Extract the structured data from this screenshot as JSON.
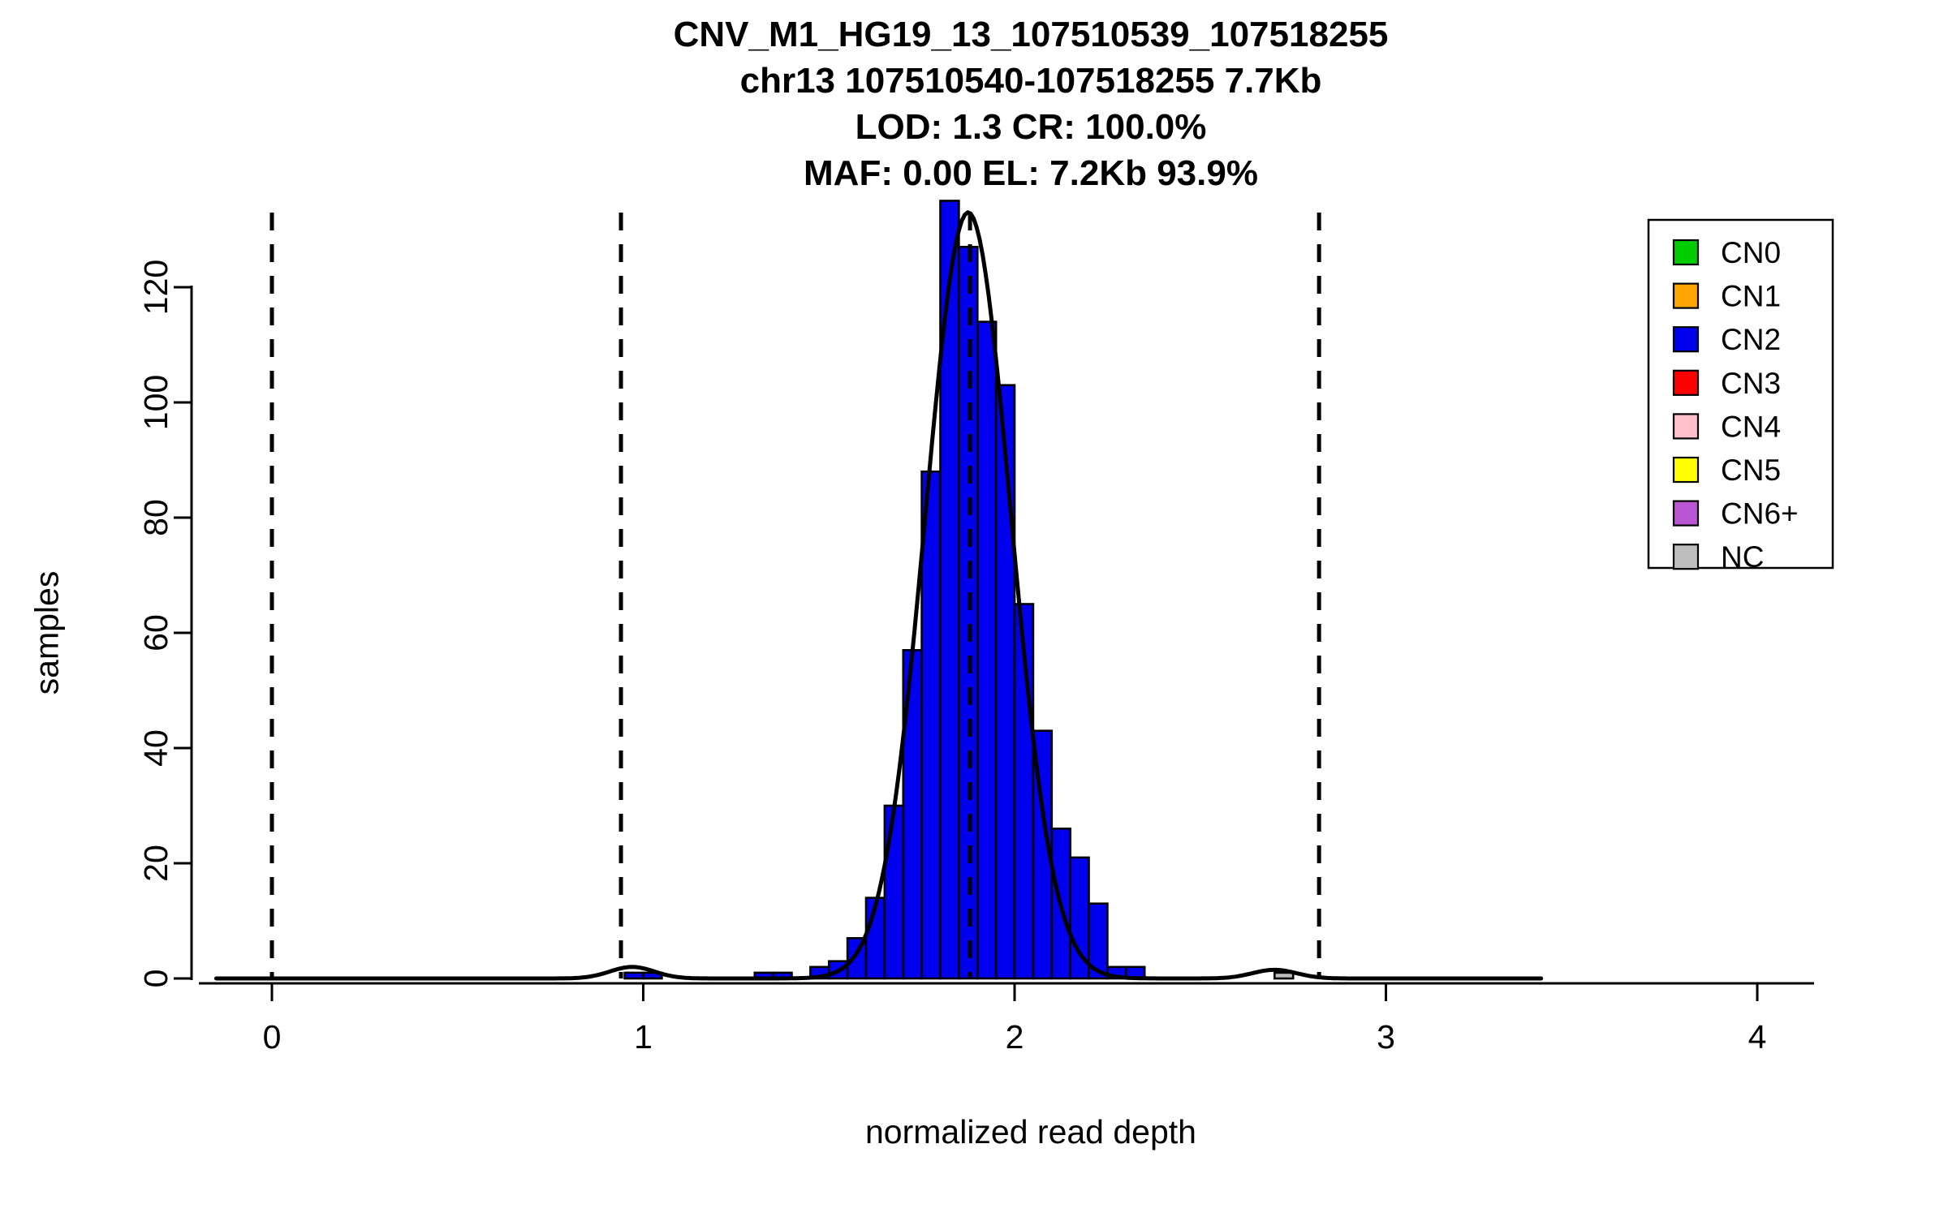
{
  "chart_data": {
    "type": "bar",
    "subtype": "histogram-with-fit",
    "title_lines": [
      "CNV_M1_HG19_13_107510539_107518255",
      "chr13 107510540-107518255 7.7Kb",
      "LOD: 1.3 CR: 100.0%",
      "MAF: 0.00 EL: 7.2Kb 93.9%"
    ],
    "xlabel": "normalized read depth",
    "ylabel": "samples",
    "xlim": [
      -0.2,
      4.15
    ],
    "ylim": [
      0,
      135
    ],
    "x_ticks": [
      0,
      1,
      2,
      3,
      4
    ],
    "y_ticks": [
      0,
      20,
      40,
      60,
      80,
      100,
      120
    ],
    "grid": false,
    "bin_width": 0.05,
    "bar_color": "#0000EE",
    "bar_border": "#000000",
    "bars": [
      {
        "x": 0.95,
        "h": 1
      },
      {
        "x": 1.0,
        "h": 1
      },
      {
        "x": 1.3,
        "h": 1
      },
      {
        "x": 1.35,
        "h": 1
      },
      {
        "x": 1.45,
        "h": 2
      },
      {
        "x": 1.5,
        "h": 3
      },
      {
        "x": 1.55,
        "h": 7
      },
      {
        "x": 1.6,
        "h": 14
      },
      {
        "x": 1.65,
        "h": 30
      },
      {
        "x": 1.7,
        "h": 57
      },
      {
        "x": 1.75,
        "h": 88
      },
      {
        "x": 1.8,
        "h": 135
      },
      {
        "x": 1.85,
        "h": 127
      },
      {
        "x": 1.9,
        "h": 114
      },
      {
        "x": 1.95,
        "h": 103
      },
      {
        "x": 2.0,
        "h": 65
      },
      {
        "x": 2.05,
        "h": 43
      },
      {
        "x": 2.1,
        "h": 26
      },
      {
        "x": 2.15,
        "h": 21
      },
      {
        "x": 2.2,
        "h": 13
      },
      {
        "x": 2.25,
        "h": 2
      },
      {
        "x": 2.3,
        "h": 2
      },
      {
        "x": 2.7,
        "h": 1,
        "color": "#BEBEBE"
      }
    ],
    "dashed_lines_x": [
      0,
      0.94,
      1.88,
      2.82
    ],
    "fit_curve": {
      "color": "#000000",
      "x_range": [
        -0.15,
        3.42
      ],
      "components": [
        {
          "mean": 1.875,
          "sd": 0.115,
          "amplitude": 133
        },
        {
          "mean": 0.97,
          "sd": 0.06,
          "amplitude": 2
        },
        {
          "mean": 2.7,
          "sd": 0.06,
          "amplitude": 1.5
        }
      ]
    },
    "legend": {
      "position": "top-right",
      "items": [
        {
          "label": "CN0",
          "color": "#00CD00"
        },
        {
          "label": "CN1",
          "color": "#FFA500"
        },
        {
          "label": "CN2",
          "color": "#0000EE"
        },
        {
          "label": "CN3",
          "color": "#FF0000"
        },
        {
          "label": "CN4",
          "color": "#FFC0CB"
        },
        {
          "label": "CN5",
          "color": "#FFFF00"
        },
        {
          "label": "CN6+",
          "color": "#BA55D3"
        },
        {
          "label": "NC",
          "color": "#BEBEBE"
        }
      ]
    }
  }
}
